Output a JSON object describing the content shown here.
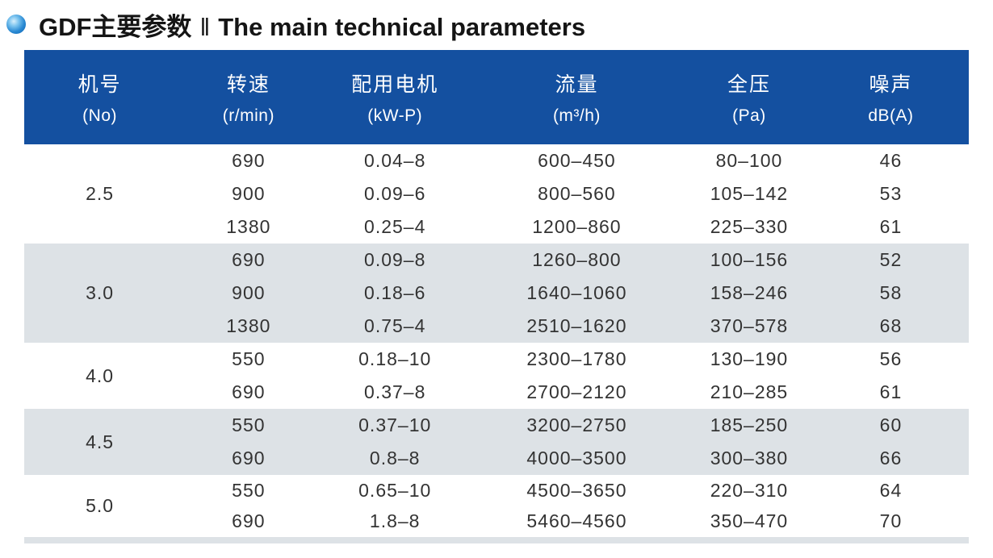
{
  "title": {
    "text_cn": "GDF主要参数",
    "separator": "‖",
    "text_en": "The main technical parameters"
  },
  "colors": {
    "header_bg": "#1450a0",
    "shaded_row_bg": "#dde2e6",
    "bullet_blue": "#2a8ad3",
    "title_text": "#151515",
    "data_text": "#333333"
  },
  "table": {
    "columns": [
      {
        "label_cn": "机号",
        "label_sub": "(No)"
      },
      {
        "label_cn": "转速",
        "label_sub": "(r/min)"
      },
      {
        "label_cn": "配用电机",
        "label_sub": "(kW-P)"
      },
      {
        "label_cn": "流量",
        "label_sub": "(m³/h)"
      },
      {
        "label_cn": "全压",
        "label_sub": "(Pa)"
      },
      {
        "label_cn": "噪声",
        "label_sub": "dB(A)"
      }
    ],
    "groups": [
      {
        "no": "2.5",
        "shaded": false,
        "rows": [
          {
            "speed": "690",
            "motor": "0.04–8",
            "flow": "600–450",
            "pressure": "80–100",
            "noise": "46"
          },
          {
            "speed": "900",
            "motor": "0.09–6",
            "flow": "800–560",
            "pressure": "105–142",
            "noise": "53"
          },
          {
            "speed": "1380",
            "motor": "0.25–4",
            "flow": "1200–860",
            "pressure": "225–330",
            "noise": "61"
          }
        ]
      },
      {
        "no": "3.0",
        "shaded": true,
        "rows": [
          {
            "speed": "690",
            "motor": "0.09–8",
            "flow": "1260–800",
            "pressure": "100–156",
            "noise": "52"
          },
          {
            "speed": "900",
            "motor": "0.18–6",
            "flow": "1640–1060",
            "pressure": "158–246",
            "noise": "58"
          },
          {
            "speed": "1380",
            "motor": "0.75–4",
            "flow": "2510–1620",
            "pressure": "370–578",
            "noise": "68"
          }
        ]
      },
      {
        "no": "4.0",
        "shaded": false,
        "rows": [
          {
            "speed": "550",
            "motor": "0.18–10",
            "flow": "2300–1780",
            "pressure": "130–190",
            "noise": "56"
          },
          {
            "speed": "690",
            "motor": "0.37–8",
            "flow": "2700–2120",
            "pressure": "210–285",
            "noise": "61"
          }
        ]
      },
      {
        "no": "4.5",
        "shaded": true,
        "rows": [
          {
            "speed": "550",
            "motor": "0.37–10",
            "flow": "3200–2750",
            "pressure": "185–250",
            "noise": "60"
          },
          {
            "speed": "690",
            "motor": "0.8–8",
            "flow": "4000–3500",
            "pressure": "300–380",
            "noise": "66"
          }
        ]
      },
      {
        "no": "5.0",
        "shaded": false,
        "rows": [
          {
            "speed": "550",
            "motor": "0.65–10",
            "flow": "4500–3650",
            "pressure": "220–310",
            "noise": "64"
          },
          {
            "speed": "690",
            "motor": "1.8–8",
            "flow": "5460–4560",
            "pressure": "350–470",
            "noise": "70"
          }
        ]
      }
    ]
  }
}
